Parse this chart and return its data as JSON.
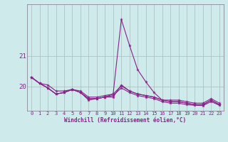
{
  "xlabel": "Windchill (Refroidissement éolien,°C)",
  "bg_color": "#ceeaea",
  "line_color": "#882288",
  "grid_color": "#aabbbb",
  "spine_color": "#888899",
  "x": [
    0,
    1,
    2,
    3,
    4,
    5,
    6,
    7,
    8,
    9,
    10,
    11,
    12,
    13,
    14,
    15,
    16,
    17,
    18,
    19,
    20,
    21,
    22,
    23
  ],
  "series1": [
    20.3,
    20.1,
    20.05,
    19.85,
    19.85,
    19.9,
    19.85,
    19.65,
    19.65,
    19.7,
    19.75,
    22.2,
    21.35,
    20.55,
    20.15,
    19.8,
    19.55,
    19.55,
    19.55,
    19.5,
    19.45,
    19.45,
    19.6,
    19.45
  ],
  "series2": [
    20.3,
    20.1,
    19.95,
    19.75,
    19.8,
    19.9,
    19.8,
    19.6,
    19.6,
    19.65,
    19.65,
    20.05,
    19.85,
    19.75,
    19.7,
    19.65,
    19.55,
    19.5,
    19.5,
    19.45,
    19.4,
    19.4,
    19.55,
    19.4
  ],
  "series3": [
    20.3,
    20.1,
    19.95,
    19.75,
    19.8,
    19.9,
    19.8,
    19.55,
    19.6,
    19.65,
    19.7,
    19.95,
    19.8,
    19.7,
    19.65,
    19.6,
    19.5,
    19.45,
    19.45,
    19.4,
    19.38,
    19.37,
    19.5,
    19.38
  ],
  "series4": [
    20.3,
    20.1,
    19.95,
    19.75,
    19.8,
    19.9,
    19.8,
    19.6,
    19.6,
    19.65,
    19.75,
    20.02,
    19.85,
    19.75,
    19.7,
    19.65,
    19.55,
    19.5,
    19.5,
    19.45,
    19.4,
    19.4,
    19.55,
    19.4
  ],
  "yticks": [
    20,
    21
  ],
  "ylim": [
    19.2,
    22.7
  ],
  "xlim": [
    -0.5,
    23.5
  ]
}
